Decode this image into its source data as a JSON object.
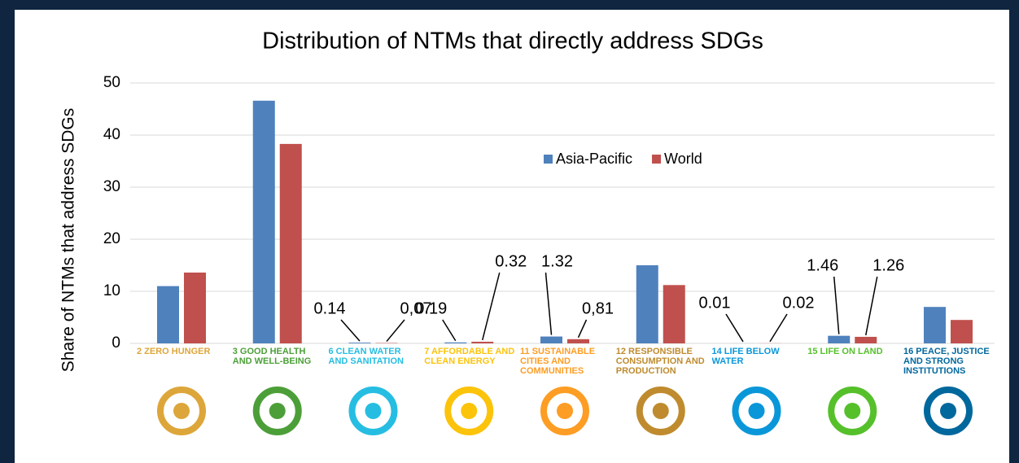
{
  "chart_data": {
    "type": "bar",
    "title": "Distribution of NTMs that directly address SDGs",
    "y_label": "Share of NTMs that address SDGs",
    "categories": [
      "2 ZERO HUNGER",
      "3 GOOD HEALTH AND WELL-BEING",
      "6 CLEAN WATER AND SANITATION",
      "7 AFFORDABLE AND CLEAN ENERGY",
      "11 SUSTAINABLE CITIES AND COMMUNITIES",
      "12 RESPONSIBLE CONSUMPTION AND PRODUCTION",
      "14 LIFE BELOW WATER",
      "15 LIFE ON LAND",
      "16 PEACE, JUSTICE AND STRONG INSTITUTIONS"
    ],
    "series": [
      {
        "name": "Asia-Pacific",
        "color": "#4f81bd",
        "values": [
          11,
          46.6,
          0.14,
          0.19,
          1.32,
          15,
          0.01,
          1.46,
          7
        ],
        "value_labels": [
          null,
          null,
          "0.14",
          "0.19",
          "1.32",
          null,
          "0.01",
          "1.46",
          null
        ]
      },
      {
        "name": "World",
        "color": "#c0504d",
        "values": [
          13.6,
          38.3,
          0.07,
          0.32,
          0.81,
          11.2,
          0.02,
          1.26,
          4.5
        ],
        "value_labels": [
          null,
          null,
          "0,07",
          "0.32",
          "0,81",
          null,
          "0.02",
          "1.26",
          null
        ]
      }
    ],
    "ylim": [
      0,
      50
    ],
    "yticks": [
      0,
      10,
      20,
      30,
      40,
      50
    ],
    "grid": true
  }
}
